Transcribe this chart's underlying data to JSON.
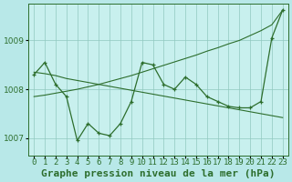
{
  "title": "Graphe pression niveau de la mer (hPa)",
  "x_labels": [
    "0",
    "1",
    "2",
    "3",
    "4",
    "5",
    "6",
    "7",
    "8",
    "9",
    "10",
    "11",
    "12",
    "13",
    "14",
    "15",
    "16",
    "17",
    "18",
    "19",
    "20",
    "21",
    "22",
    "23"
  ],
  "pressure_data": [
    1008.3,
    1008.55,
    1008.1,
    1007.85,
    1006.95,
    1007.3,
    1007.1,
    1007.05,
    1007.3,
    1007.75,
    1008.55,
    1008.5,
    1008.1,
    1008.0,
    1008.25,
    1008.1,
    1007.85,
    1007.75,
    1007.65,
    1007.62,
    1007.62,
    1007.75,
    1009.05,
    1009.62
  ],
  "line_decreasing": [
    1008.35,
    1008.32,
    1008.28,
    1008.22,
    1008.18,
    1008.14,
    1008.1,
    1008.06,
    1008.02,
    1007.98,
    1007.94,
    1007.9,
    1007.86,
    1007.82,
    1007.78,
    1007.74,
    1007.7,
    1007.66,
    1007.62,
    1007.58,
    1007.54,
    1007.5,
    1007.46,
    1007.42
  ],
  "line_increasing": [
    1007.85,
    1007.88,
    1007.92,
    1007.96,
    1008.0,
    1008.05,
    1008.1,
    1008.16,
    1008.22,
    1008.28,
    1008.35,
    1008.42,
    1008.49,
    1008.56,
    1008.63,
    1008.7,
    1008.78,
    1008.85,
    1008.93,
    1009.0,
    1009.1,
    1009.2,
    1009.32,
    1009.62
  ],
  "line_color": "#2d6e2d",
  "bg_color": "#b8e8e8",
  "plot_bg": "#c8f0ee",
  "grid_color": "#90c8c0",
  "ylim": [
    1006.65,
    1009.75
  ],
  "yticks": [
    1007,
    1008,
    1009
  ],
  "title_fontsize": 8,
  "tick_fontsize": 6.5
}
